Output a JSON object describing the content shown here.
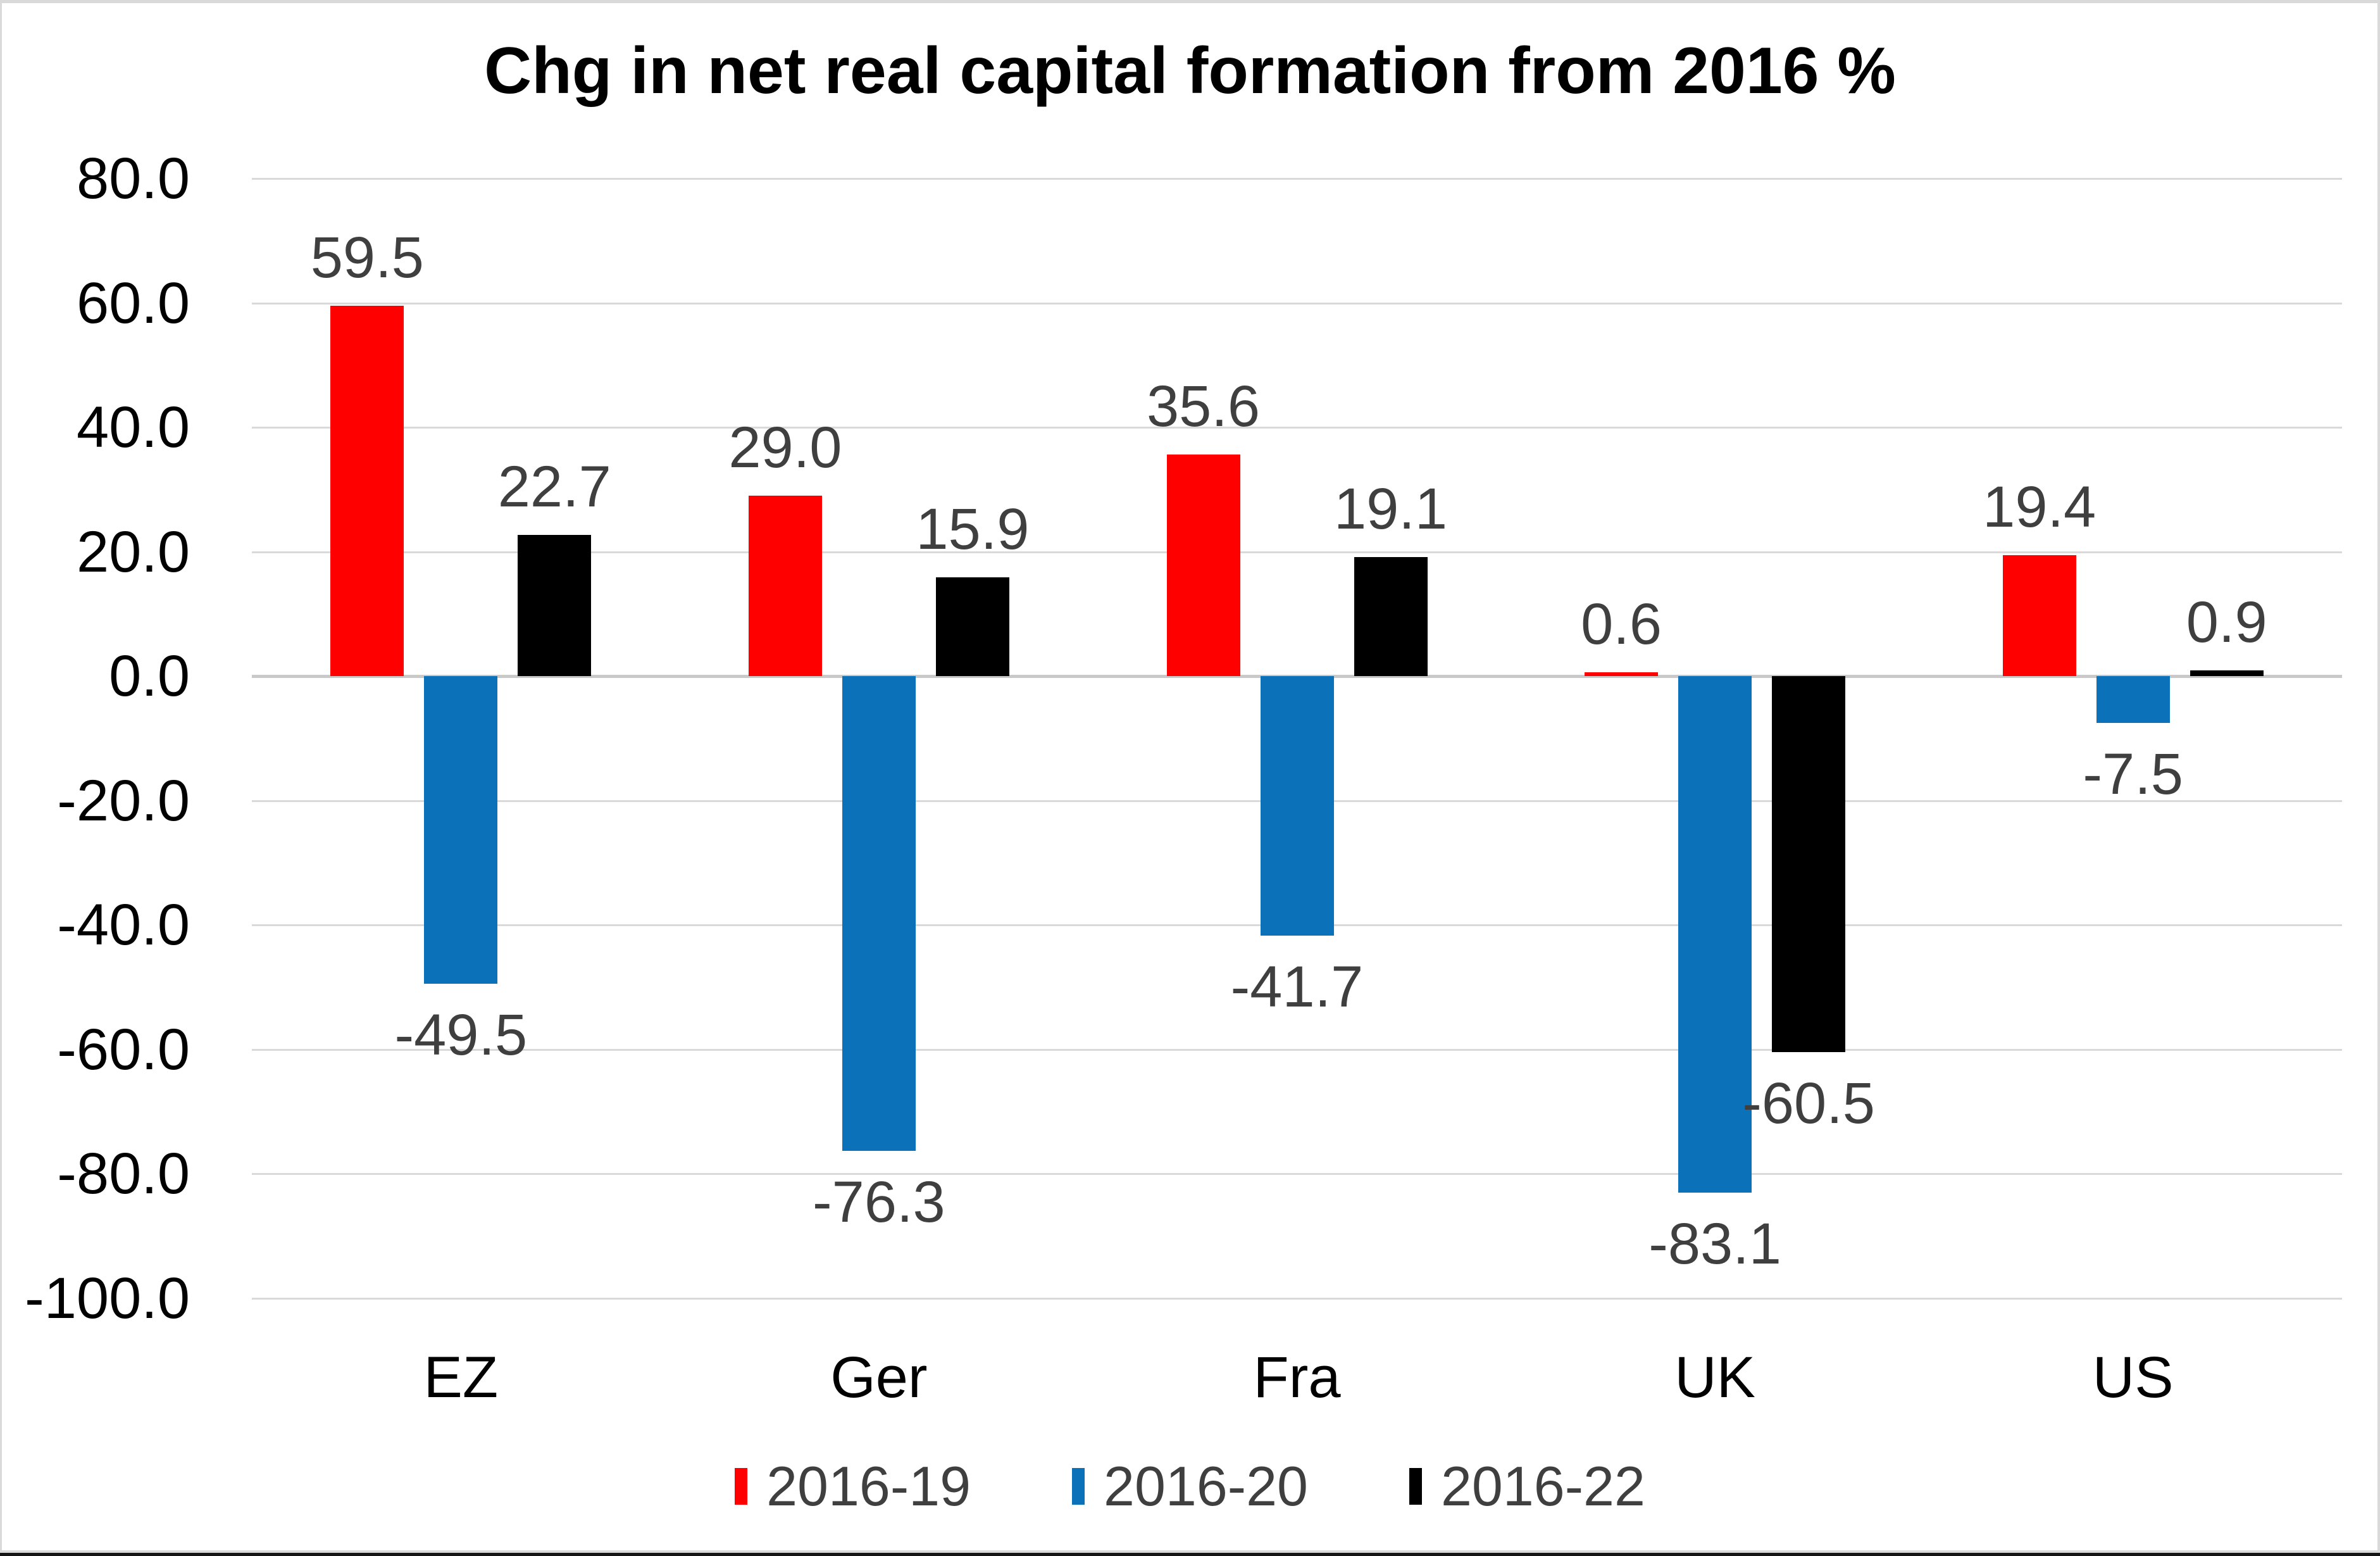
{
  "title": "Chg in net real capital formation from 2016 %",
  "chart_data": {
    "type": "bar",
    "title": "Chg in net real capital formation from 2016 %",
    "categories": [
      "EZ",
      "Ger",
      "Fra",
      "UK",
      "US"
    ],
    "series": [
      {
        "name": "2016-19",
        "color": "#ff0000",
        "values": [
          59.5,
          29.0,
          35.6,
          0.6,
          19.4
        ]
      },
      {
        "name": "2016-20",
        "color": "#0b72ba",
        "values": [
          -49.5,
          -76.3,
          -41.7,
          -83.1,
          -7.5
        ]
      },
      {
        "name": "2016-22",
        "color": "#000000",
        "values": [
          22.7,
          15.9,
          19.1,
          -60.5,
          0.9
        ]
      }
    ],
    "ylim": [
      -100,
      80
    ],
    "ytick_step": 20,
    "ytick_labels": [
      "80.0",
      "60.0",
      "40.0",
      "20.0",
      "0.0",
      "-20.0",
      "-40.0",
      "-60.0",
      "-80.0",
      "-100.0"
    ],
    "grid": true,
    "legend_position": "bottom",
    "label_decimals": 1,
    "colors": {
      "grid": "#d9d9d9",
      "zero_line": "#c9c9c9",
      "data_label": "#3f3f3f",
      "axis_text": "#000000",
      "background": "#ffffff"
    }
  }
}
